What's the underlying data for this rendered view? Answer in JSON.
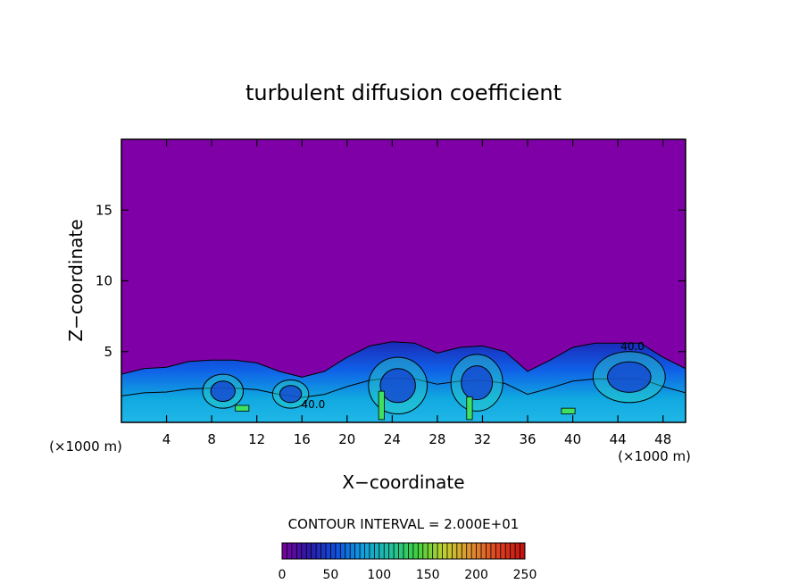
{
  "chart_data": {
    "type": "heatmap",
    "title": "turbulent diffusion coefficient",
    "xlabel": "X−coordinate",
    "ylabel": "Z−coordinate",
    "x_unit_label": "(×1000 m)",
    "y_unit_label": "(×1000 m)",
    "xlim": [
      0,
      50
    ],
    "ylim": [
      0,
      20
    ],
    "x_ticks": [
      "4",
      "8",
      "12",
      "16",
      "20",
      "24",
      "28",
      "32",
      "36",
      "40",
      "44",
      "48"
    ],
    "y_ticks": [
      "5",
      "10",
      "15"
    ],
    "contour_interval_label": "CONTOUR INTERVAL = 2.000E+01",
    "colorbar": {
      "min": 0,
      "max": 250,
      "ticks": [
        "0",
        "50",
        "100",
        "150",
        "200",
        "250"
      ],
      "colors": [
        "#7b00a0",
        "#2a1aa8",
        "#1050e0",
        "#10a0e0",
        "#20c0a0",
        "#40d040",
        "#c0d030",
        "#e09030",
        "#e04020",
        "#c01010"
      ]
    },
    "background_color": "#8000a8",
    "contour_labels": [
      "40.0",
      "40.0"
    ],
    "boundary_layer": {
      "x": [
        0,
        2,
        4,
        6,
        8,
        10,
        12,
        14,
        16,
        18,
        20,
        22,
        24,
        26,
        28,
        30,
        32,
        34,
        36,
        38,
        40,
        42,
        44,
        46,
        48,
        50
      ],
      "top_z": [
        3.4,
        3.8,
        3.9,
        4.3,
        4.4,
        4.4,
        4.2,
        3.6,
        3.2,
        3.6,
        4.6,
        5.4,
        5.7,
        5.6,
        4.9,
        5.3,
        5.4,
        5.0,
        3.6,
        4.4,
        5.3,
        5.6,
        5.6,
        5.6,
        4.6,
        3.8
      ]
    }
  }
}
